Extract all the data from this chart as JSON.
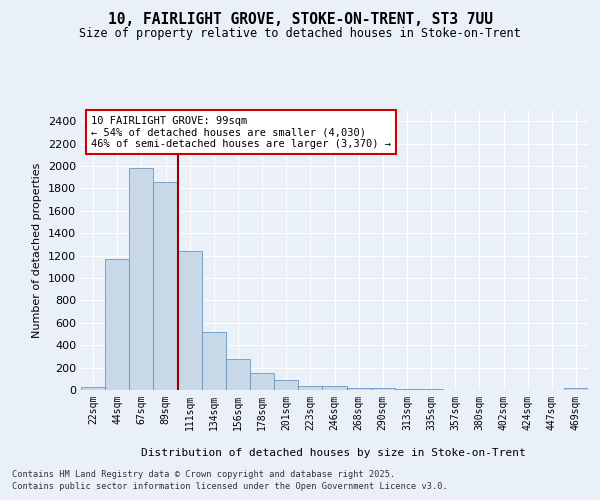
{
  "title_line1": "10, FAIRLIGHT GROVE, STOKE-ON-TRENT, ST3 7UU",
  "title_line2": "Size of property relative to detached houses in Stoke-on-Trent",
  "xlabel": "Distribution of detached houses by size in Stoke-on-Trent",
  "ylabel": "Number of detached properties",
  "bin_labels": [
    "22sqm",
    "44sqm",
    "67sqm",
    "89sqm",
    "111sqm",
    "134sqm",
    "156sqm",
    "178sqm",
    "201sqm",
    "223sqm",
    "246sqm",
    "268sqm",
    "290sqm",
    "313sqm",
    "335sqm",
    "357sqm",
    "380sqm",
    "402sqm",
    "424sqm",
    "447sqm",
    "469sqm"
  ],
  "bar_values": [
    25,
    1170,
    1980,
    1860,
    1240,
    520,
    275,
    150,
    90,
    40,
    40,
    20,
    15,
    8,
    5,
    3,
    2,
    2,
    1,
    1,
    20
  ],
  "bar_color": "#c8d8e8",
  "bar_edge_color": "#5588bb",
  "vline_color": "#990000",
  "annotation_text": "10 FAIRLIGHT GROVE: 99sqm\n← 54% of detached houses are smaller (4,030)\n46% of semi-detached houses are larger (3,370) →",
  "annotation_box_color": "#ffffff",
  "annotation_box_edge_color": "#cc0000",
  "footnote_line1": "Contains HM Land Registry data © Crown copyright and database right 2025.",
  "footnote_line2": "Contains public sector information licensed under the Open Government Licence v3.0.",
  "ylim": [
    0,
    2500
  ],
  "yticks": [
    0,
    200,
    400,
    600,
    800,
    1000,
    1200,
    1400,
    1600,
    1800,
    2000,
    2200,
    2400
  ],
  "bg_color": "#eaf0f8",
  "plot_bg_color": "#eaf0f8"
}
